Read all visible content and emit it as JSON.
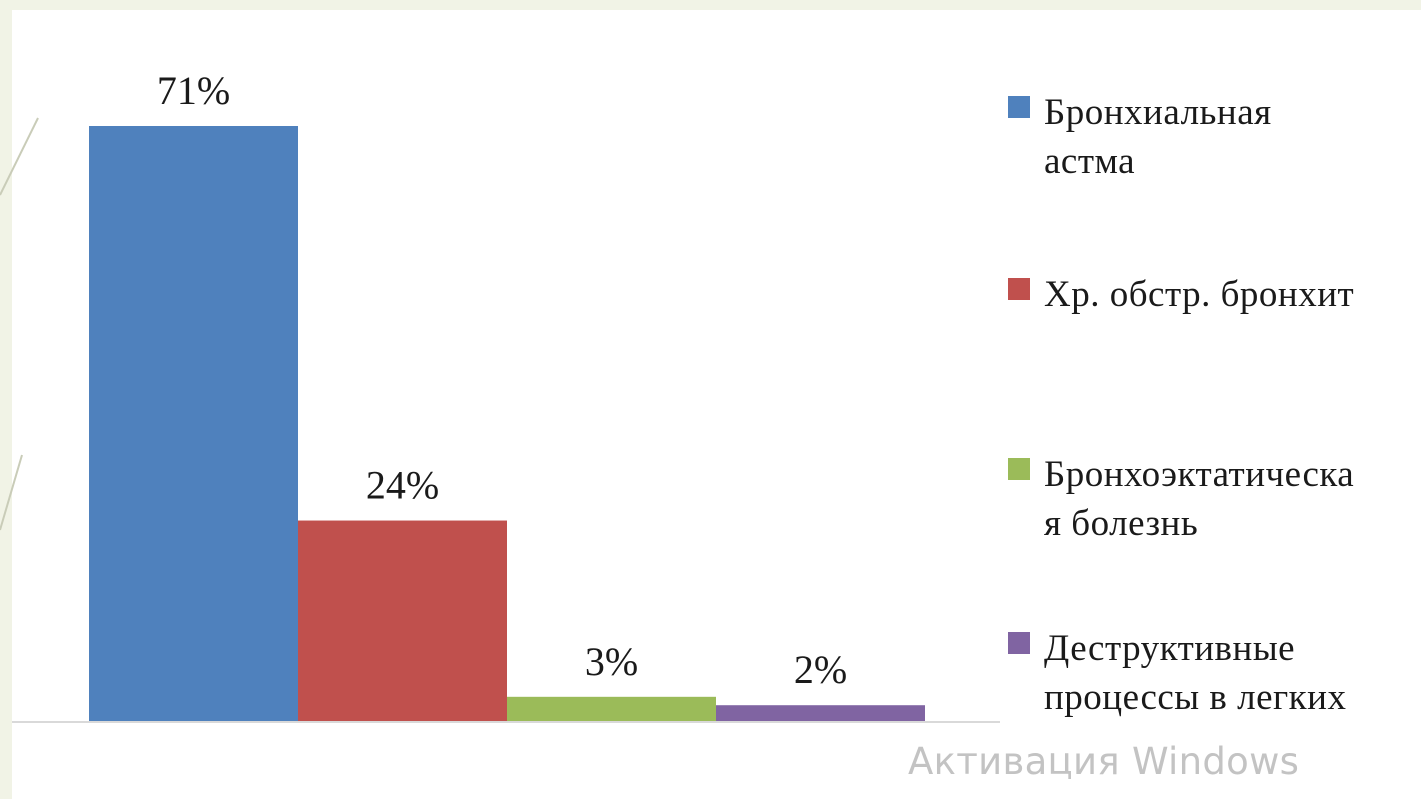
{
  "chart_data": {
    "type": "bar",
    "categories": [
      "Бронхиальная\nастма",
      "Хр. обстр. бронхит",
      "Бронхоэктатическа\nя болезнь",
      "Деструктивные\nпроцессы в легких"
    ],
    "values": [
      71,
      24,
      3,
      2
    ],
    "data_labels": [
      "71%",
      "24%",
      "3%",
      "2%"
    ],
    "colors": [
      "#4f81bd",
      "#c0504d",
      "#9bbb59",
      "#8064a2"
    ],
    "ylim": [
      0,
      71
    ],
    "grid": false,
    "legend_position": "right"
  },
  "watermark": "Активация Windows"
}
